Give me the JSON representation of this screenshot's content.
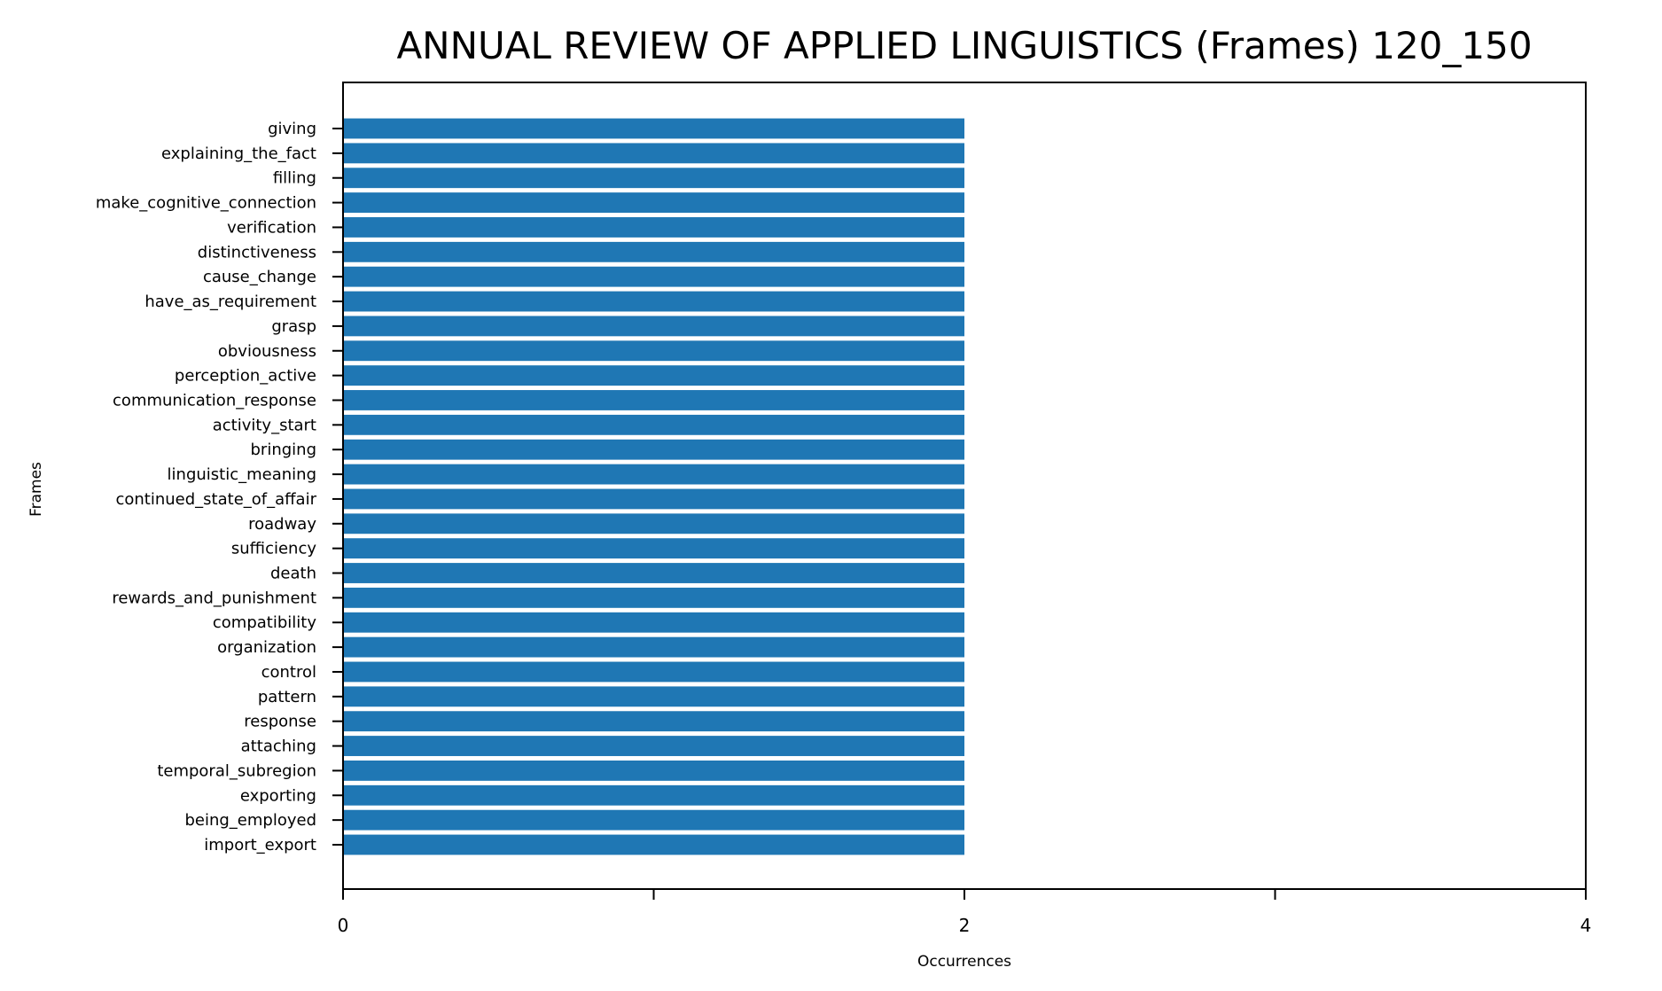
{
  "chart_data": {
    "type": "bar",
    "orientation": "horizontal",
    "title": "ANNUAL REVIEW OF APPLIED LINGUISTICS (Frames) 120_150",
    "xlabel": "Occurrences",
    "ylabel": "Frames",
    "xlim": [
      0,
      4
    ],
    "x_ticks": [
      0,
      1,
      2,
      3,
      4
    ],
    "x_tick_labels": [
      "0",
      "",
      "2",
      "",
      "4"
    ],
    "grid": false,
    "bar_color": "#1f77b4",
    "categories": [
      "giving",
      "explaining_the_fact",
      "filling",
      "make_cognitive_connection",
      "verification",
      "distinctiveness",
      "cause_change",
      "have_as_requirement",
      "grasp",
      "obviousness",
      "perception_active",
      "communication_response",
      "activity_start",
      "bringing",
      "linguistic_meaning",
      "continued_state_of_affair",
      "roadway",
      "sufficiency",
      "death",
      "rewards_and_punishment",
      "compatibility",
      "organization",
      "control",
      "pattern",
      "response",
      "attaching",
      "temporal_subregion",
      "exporting",
      "being_employed",
      "import_export"
    ],
    "values": [
      2,
      2,
      2,
      2,
      2,
      2,
      2,
      2,
      2,
      2,
      2,
      2,
      2,
      2,
      2,
      2,
      2,
      2,
      2,
      2,
      2,
      2,
      2,
      2,
      2,
      2,
      2,
      2,
      2,
      2
    ]
  }
}
